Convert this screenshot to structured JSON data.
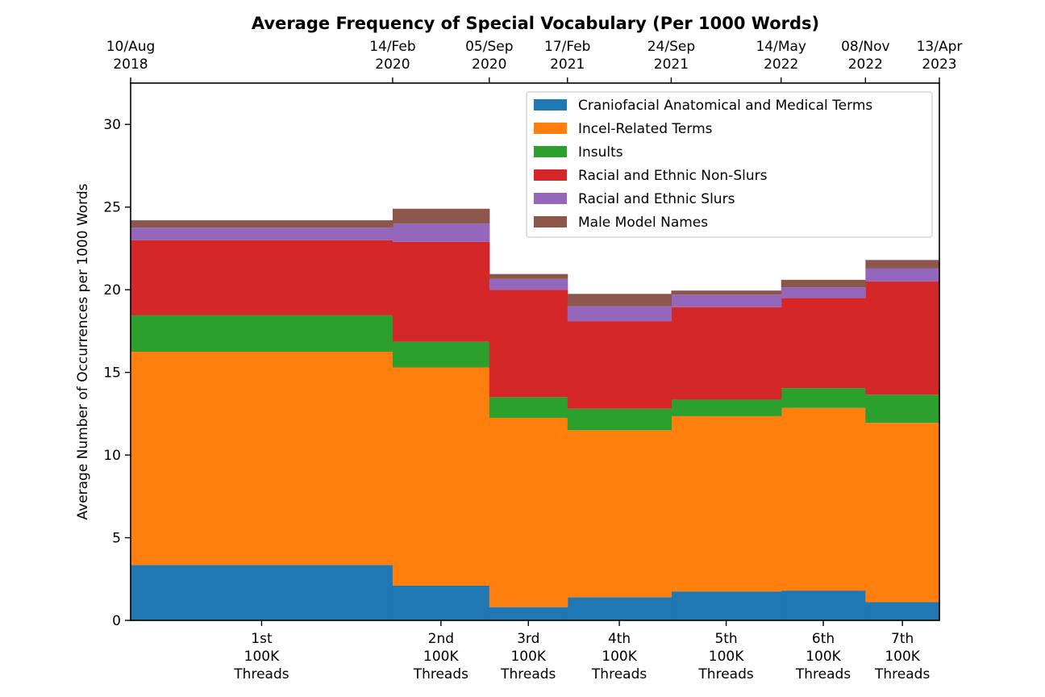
{
  "chart_data": {
    "type": "area",
    "title": "Average Frequency of Special Vocabulary (Per 1000 Words)",
    "ylabel": "Average Number of Occurrences per 1000 Words",
    "xlabel": "",
    "ylim": [
      0,
      32.5
    ],
    "yticks": [
      0,
      5,
      10,
      15,
      20,
      25,
      30
    ],
    "grid": false,
    "legend_position": "top-right",
    "segments": [
      {
        "start": "2018-08-10",
        "end": "2020-02-14",
        "bottom_label": [
          "1st",
          "100K",
          "Threads"
        ]
      },
      {
        "start": "2020-02-14",
        "end": "2020-09-05",
        "bottom_label": [
          "2nd",
          "100K",
          "Threads"
        ]
      },
      {
        "start": "2020-09-05",
        "end": "2021-02-17",
        "bottom_label": [
          "3rd",
          "100K",
          "Threads"
        ]
      },
      {
        "start": "2021-02-17",
        "end": "2021-09-24",
        "bottom_label": [
          "4th",
          "100K",
          "Threads"
        ]
      },
      {
        "start": "2021-09-24",
        "end": "2022-05-14",
        "bottom_label": [
          "5th",
          "100K",
          "Threads"
        ]
      },
      {
        "start": "2022-05-14",
        "end": "2022-11-08",
        "bottom_label": [
          "6th",
          "100K",
          "Threads"
        ]
      },
      {
        "start": "2022-11-08",
        "end": "2023-04-13",
        "bottom_label": [
          "7th",
          "100K",
          "Threads"
        ]
      }
    ],
    "top_ticks": [
      {
        "date": "2018-08-10",
        "label": [
          "10/Aug",
          "2018"
        ]
      },
      {
        "date": "2020-02-14",
        "label": [
          "14/Feb",
          "2020"
        ]
      },
      {
        "date": "2020-09-05",
        "label": [
          "05/Sep",
          "2020"
        ]
      },
      {
        "date": "2021-02-17",
        "label": [
          "17/Feb",
          "2021"
        ]
      },
      {
        "date": "2021-09-24",
        "label": [
          "24/Sep",
          "2021"
        ]
      },
      {
        "date": "2022-05-14",
        "label": [
          "14/May",
          "2022"
        ]
      },
      {
        "date": "2022-11-08",
        "label": [
          "08/Nov",
          "2022"
        ]
      },
      {
        "date": "2023-04-13",
        "label": [
          "13/Apr",
          "2023"
        ]
      }
    ],
    "series": [
      {
        "name": "Craniofacial Anatomical and Medical Terms",
        "color": "#1f77b4",
        "values": [
          3.35,
          2.1,
          0.8,
          1.4,
          1.75,
          1.8,
          1.1
        ]
      },
      {
        "name": "Incel-Related Terms",
        "color": "#ff7f0e",
        "values": [
          12.9,
          13.2,
          11.45,
          10.1,
          10.6,
          11.05,
          10.85
        ]
      },
      {
        "name": "Insults",
        "color": "#2ca02c",
        "values": [
          2.2,
          1.55,
          1.25,
          1.3,
          1.0,
          1.2,
          1.7
        ]
      },
      {
        "name": "Racial and Ethnic Non-Slurs",
        "color": "#d62728",
        "values": [
          4.55,
          6.05,
          6.5,
          5.3,
          5.6,
          5.45,
          6.85
        ]
      },
      {
        "name": "Racial and Ethnic Slurs",
        "color": "#9467bd",
        "values": [
          0.75,
          1.1,
          0.65,
          0.9,
          0.75,
          0.65,
          0.8
        ]
      },
      {
        "name": "Male Model Names",
        "color": "#8c564b",
        "values": [
          0.45,
          0.9,
          0.3,
          0.75,
          0.25,
          0.45,
          0.5
        ]
      }
    ]
  }
}
